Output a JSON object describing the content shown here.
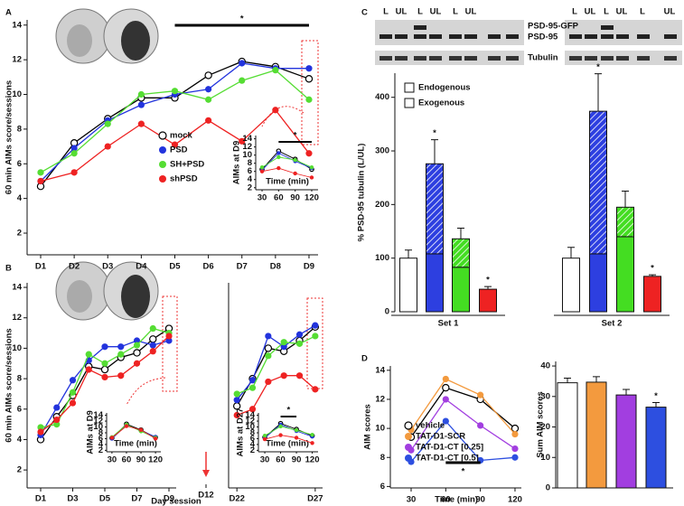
{
  "chart_data": [
    {
      "type": "line",
      "panel_label": "A",
      "ylabel": "60 min AIMs score/sessions",
      "x": [
        1,
        2,
        3,
        4,
        5,
        6,
        7,
        8,
        9
      ],
      "xlim": [
        0.596,
        9.27
      ],
      "xticks": [
        {
          "value": 1,
          "label": "D1"
        },
        {
          "value": 2,
          "label": "D2"
        },
        {
          "value": 3,
          "label": "D3"
        },
        {
          "value": 4,
          "label": "D4"
        },
        {
          "value": 5,
          "label": "D5"
        },
        {
          "value": 6,
          "label": "D6"
        },
        {
          "value": 7,
          "label": "D7"
        },
        {
          "value": 8,
          "label": "D8"
        },
        {
          "value": 9,
          "label": "D9"
        }
      ],
      "ylim": [
        0.75,
        14.3
      ],
      "yticks": [
        2,
        4,
        6,
        8,
        10,
        12,
        14
      ],
      "legend": true,
      "series": [
        {
          "name": "mock",
          "color": "#000000",
          "marker": "open",
          "values": [
            4.7,
            7.2,
            8.6,
            9.8,
            9.8,
            11.1,
            11.9,
            11.6,
            10.9
          ]
        },
        {
          "name": "PSD",
          "color": "#2233dd",
          "values": [
            5.0,
            6.9,
            8.5,
            9.4,
            10.0,
            10.3,
            11.8,
            11.5,
            11.5
          ]
        },
        {
          "name": "SH+PSD",
          "color": "#55dd33",
          "values": [
            5.5,
            6.6,
            8.3,
            10.0,
            10.2,
            9.7,
            10.8,
            11.4,
            9.7
          ]
        },
        {
          "name": "shPSD",
          "color": "#ee2222",
          "values": [
            5.0,
            5.5,
            7.0,
            8.3,
            7.1,
            8.5,
            7.3,
            9.1,
            6.6
          ]
        }
      ],
      "significance": {
        "from": 5,
        "to": 9,
        "label": "*"
      }
    },
    {
      "type": "line",
      "ylabel": "AIMs  at D9",
      "xlabel": "Time (min)",
      "x": [
        30,
        60,
        90,
        120
      ],
      "xlim": [
        18.5,
        131.5
      ],
      "xticks": [
        30,
        60,
        90,
        120
      ],
      "ylim": [
        1.5,
        14.8
      ],
      "yticks": [
        2,
        4,
        6,
        8,
        10,
        12,
        14
      ],
      "series": [
        {
          "color": "#000000",
          "marker": "open",
          "values": [
            6.5,
            11,
            9,
            6.5
          ]
        },
        {
          "color": "#2233dd",
          "values": [
            6.3,
            10.5,
            8.5,
            6.8
          ]
        },
        {
          "color": "#55dd33",
          "values": [
            7,
            9.5,
            8.8,
            7
          ]
        },
        {
          "color": "#ee2222",
          "values": [
            6,
            6.8,
            5.5,
            4.5
          ]
        }
      ],
      "significance": {
        "from": 60,
        "to": 120,
        "label": "*"
      }
    },
    {
      "type": "line",
      "panel_label": "B",
      "ylabel": "60 min AIMs score/sessions",
      "xlabel": "Day session",
      "x_break_label": "D12",
      "x": [
        1,
        2,
        3,
        4,
        5,
        6,
        7,
        8,
        9
      ],
      "xlim": [
        0.155,
        9.45
      ],
      "xticks": [
        {
          "value": 1,
          "label": "D1"
        },
        {
          "value": 3,
          "label": "D3"
        },
        {
          "value": 5,
          "label": "D5"
        },
        {
          "value": 7,
          "label": "D7"
        },
        {
          "value": 9,
          "label": "D9"
        }
      ],
      "ylim": [
        0.82,
        14.3
      ],
      "yticks": [
        2,
        4,
        6,
        8,
        10,
        12,
        14
      ],
      "series": [
        {
          "name": "mock",
          "color": "#000000",
          "marker": "open",
          "values": [
            4.0,
            5.5,
            6.9,
            8.8,
            8.6,
            9.4,
            9.7,
            10.6,
            11.3
          ]
        },
        {
          "name": "PSD",
          "color": "#2233dd",
          "values": [
            4.3,
            6.1,
            7.9,
            9.2,
            10.1,
            10.1,
            10.5,
            10.2,
            10.5
          ]
        },
        {
          "name": "SH+PSD",
          "color": "#55dd33",
          "values": [
            4.8,
            5.0,
            7.1,
            9.6,
            9.0,
            9.6,
            10.2,
            11.3,
            11.0
          ]
        },
        {
          "name": "shPSD",
          "color": "#ee2222",
          "values": [
            4.5,
            5.3,
            6.4,
            8.6,
            8.1,
            8.2,
            9.0,
            9.8,
            10.8
          ]
        }
      ]
    },
    {
      "type": "line",
      "ylabel": "AIMs  at D9",
      "xlabel": "Time (min)",
      "x": [
        30,
        60,
        90,
        120
      ],
      "xlim": [
        19,
        131
      ],
      "xticks": [
        30,
        60,
        90,
        120
      ],
      "ylim": [
        1.5,
        14.8
      ],
      "yticks": [
        2,
        4,
        6,
        8,
        10,
        12,
        14
      ],
      "series": [
        {
          "color": "#000000",
          "marker": "open",
          "values": [
            6.2,
            11,
            9,
            6.4
          ]
        },
        {
          "color": "#2233dd",
          "values": [
            6,
            10.6,
            8.8,
            6.6
          ]
        },
        {
          "color": "#55dd33",
          "values": [
            6.5,
            10.8,
            8.5,
            6.3
          ]
        },
        {
          "color": "#ee2222",
          "values": [
            6.3,
            10.3,
            9,
            6.0
          ]
        }
      ]
    },
    {
      "type": "line",
      "x": [
        22,
        23,
        24,
        25,
        26,
        27
      ],
      "xlim": [
        21.47,
        27.47
      ],
      "xticks": [
        {
          "value": 22,
          "label": "D22"
        },
        {
          "value": 27,
          "label": "D27"
        }
      ],
      "ylim": [
        0.82,
        14.3
      ],
      "series": [
        {
          "color": "#000000",
          "marker": "open",
          "values": [
            6.2,
            8.0,
            10.0,
            9.8,
            10.5,
            11.4
          ]
        },
        {
          "color": "#2233dd",
          "values": [
            6.6,
            7.9,
            10.8,
            10.1,
            10.9,
            11.5
          ]
        },
        {
          "color": "#55dd33",
          "values": [
            7.0,
            7.4,
            9.5,
            10.4,
            10.3,
            10.8
          ]
        },
        {
          "color": "#ee2222",
          "values": [
            5.6,
            6.0,
            7.8,
            8.2,
            8.2,
            7.3
          ]
        }
      ]
    },
    {
      "type": "line",
      "ylabel": "AIMs  at D27",
      "xlabel": "Time (min)",
      "x": [
        30,
        60,
        90,
        120
      ],
      "xlim": [
        17.9,
        131
      ],
      "xticks": [
        30,
        60,
        90,
        120
      ],
      "ylim": [
        1.5,
        14.8
      ],
      "yticks": [
        2,
        4,
        6,
        8,
        10,
        12,
        14
      ],
      "series": [
        {
          "color": "#000000",
          "marker": "open",
          "values": [
            6.5,
            11.2,
            9.2,
            7
          ]
        },
        {
          "color": "#2233dd",
          "values": [
            6.3,
            10.8,
            8.6,
            6.7
          ]
        },
        {
          "color": "#55dd33",
          "values": [
            7,
            10.2,
            8.9,
            7.3
          ]
        },
        {
          "color": "#ee2222",
          "values": [
            5.8,
            7.2,
            6.3,
            4.5
          ]
        }
      ],
      "significance": {
        "from": 60,
        "to": 90,
        "label": "*"
      }
    },
    {
      "type": "bar",
      "panel_label": "C",
      "ylabel": "% PSD-95 tubulin (L/UL)",
      "ylim": [
        0,
        445
      ],
      "yticks": [
        0,
        100,
        200,
        300,
        400
      ],
      "legend": true,
      "colors": [
        "#ffffff",
        "#2d3fe0",
        "#44dd22",
        "#ee2222",
        "#ffffff",
        "#2d3fe0",
        "#44dd22",
        "#ee2222"
      ],
      "series": [
        {
          "name": "Endogenous",
          "fill": "solid",
          "values": [
            100,
            108,
            83,
            42,
            100,
            108,
            140,
            66
          ]
        },
        {
          "name": "Exogenous",
          "fill": "hatched",
          "values": [
            null,
            168,
            53,
            null,
            null,
            266,
            55,
            null
          ]
        }
      ],
      "errors": [
        15,
        45,
        20,
        5,
        20,
        70,
        30,
        3
      ],
      "significance": [
        null,
        "*",
        null,
        "*",
        null,
        "*",
        null,
        "*"
      ],
      "group_labels": [
        "Set 1",
        "Set 2"
      ]
    },
    {
      "type": "line",
      "panel_label": "D",
      "ylabel": "AIM scores",
      "xlabel": "Time (min)",
      "x": [
        30,
        60,
        90,
        120
      ],
      "xlim": [
        12,
        125.5
      ],
      "xticks": [
        30,
        60,
        90,
        120
      ],
      "ylim": [
        5.9,
        14.3
      ],
      "yticks": [
        6,
        8,
        10,
        12,
        14
      ],
      "legend": true,
      "series": [
        {
          "name": "vehicle",
          "color": "#000000",
          "marker": "open",
          "values": [
            9.4,
            12.8,
            12.0,
            10.0
          ]
        },
        {
          "name": "TAT-D1-SCR",
          "color": "#f39a3e",
          "values": [
            9.9,
            13.4,
            12.3,
            9.6
          ]
        },
        {
          "name": "TAT-D1-CT [0.25]",
          "color": "#a23ee0",
          "values": [
            8.5,
            12.0,
            10.2,
            8.6
          ]
        },
        {
          "name": "TAT-D1-CT [0.5]",
          "color": "#2d4fe0",
          "values": [
            7.7,
            10.5,
            7.8,
            8.0
          ]
        }
      ],
      "significance": {
        "from": 60,
        "to": 90,
        "label": "*"
      }
    },
    {
      "type": "bar",
      "ylabel": "Sum AIM scores",
      "ylim": [
        0,
        41.5
      ],
      "yticks": [
        0,
        10,
        20,
        30,
        40
      ],
      "colors": [
        "#ffffff",
        "#f39a3e",
        "#a23ee0",
        "#2d4fe0"
      ],
      "values": [
        34.5,
        34.7,
        30.5,
        26.5
      ],
      "errors": [
        1.5,
        1.8,
        1.8,
        1.5
      ],
      "significance": [
        null,
        null,
        null,
        "*"
      ]
    }
  ],
  "blots": {
    "lanes": [
      "L",
      "UL",
      "L",
      "UL",
      "L",
      "UL",
      "L",
      "UL",
      "L",
      "UL",
      "L",
      "UL"
    ],
    "rows": [
      "PSD-95-GFP",
      "PSD-95",
      "Tubulin"
    ]
  }
}
